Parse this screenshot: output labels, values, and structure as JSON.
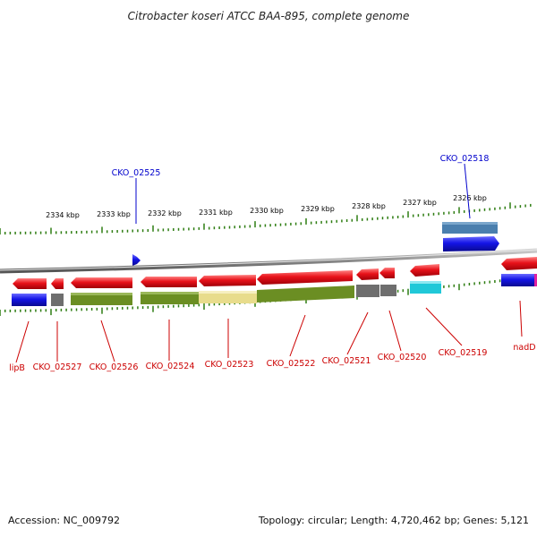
{
  "title": "Citrobacter koseri ATCC BAA-895, complete genome",
  "footer": {
    "accession": "Accession: NC_009792",
    "summary": "Topology: circular; Length: 4,720,462 bp; Genes: 5,121"
  },
  "colors": {
    "gene_red": "#e8121a",
    "gene_blue": "#1414e6",
    "label_red": "#cc0000",
    "label_blue": "#0000cc",
    "tick_green": "#2e7d12",
    "backbone": "#8a8a8a",
    "olive": "#6b8e23",
    "khaki": "#e8dc8c",
    "gray": "#6e6e6e",
    "cyan": "#20c8d8",
    "steel": "#4a7fae",
    "pink": "#e020a0"
  },
  "kbp_labels": [
    "2334 kbp",
    "2333 kbp",
    "2332 kbp",
    "2331 kbp",
    "2330 kbp",
    "2329 kbp",
    "2328 kbp",
    "2327 kbp",
    "2326 kbp"
  ],
  "bottom_labels": [
    "lipB",
    "CKO_02527",
    "CKO_02526",
    "CKO_02524",
    "CKO_02523",
    "CKO_02522",
    "CKO_02521",
    "CKO_02520",
    "CKO_02519",
    "nadD"
  ],
  "top_labels": [
    "CKO_02525",
    "CKO_02518"
  ]
}
